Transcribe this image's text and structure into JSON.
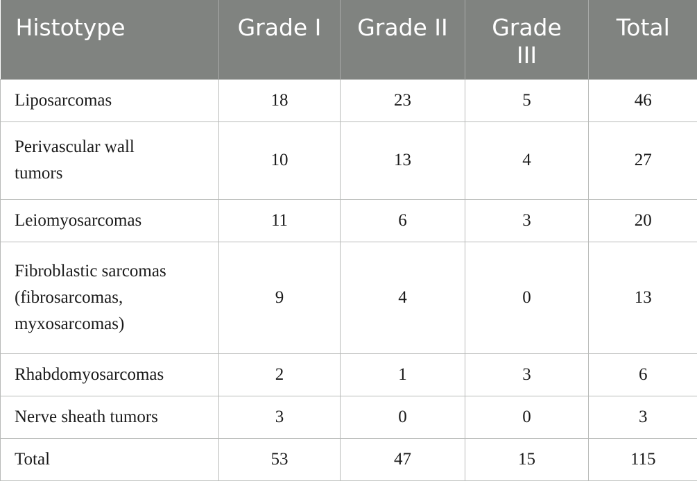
{
  "table": {
    "headers": [
      "Histotype",
      "Grade I",
      "Grade II",
      "Grade III",
      "Total"
    ],
    "rows": [
      [
        "Liposarcomas",
        "18",
        "23",
        "5",
        "46"
      ],
      [
        "Perivascular wall tumors",
        "10",
        "13",
        "4",
        "27"
      ],
      [
        "Leiomyosarcomas",
        "11",
        "6",
        "3",
        "20"
      ],
      [
        "Fibroblastic sarcomas (fibrosarcomas, myxosarcomas)",
        "9",
        "4",
        "0",
        "13"
      ],
      [
        "Rhabdomyosarcomas",
        "2",
        "1",
        "3",
        "6"
      ],
      [
        "Nerve sheath tumors",
        "3",
        "0",
        "0",
        "3"
      ],
      [
        "Total",
        "53",
        "47",
        "15",
        "115"
      ]
    ]
  },
  "colors": {
    "header_background": "#808380",
    "header_text": "#ffffff",
    "grid_lines": "#b8bab8"
  }
}
